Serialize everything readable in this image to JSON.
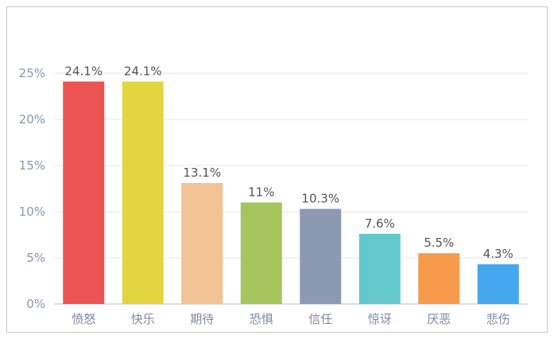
{
  "chart_data": {
    "type": "bar",
    "categories": [
      "愤怒",
      "快乐",
      "期待",
      "恐惧",
      "信任",
      "惊讶",
      "厌恶",
      "悲伤"
    ],
    "values": [
      24.1,
      24.1,
      13.1,
      11,
      10.3,
      7.6,
      5.5,
      4.3
    ],
    "data_labels": [
      "24.1%",
      "24.1%",
      "13.1%",
      "11%",
      "10.3%",
      "7.6%",
      "5.5%",
      "4.3%"
    ],
    "colors": [
      "#ec5454",
      "#e3d540",
      "#f0c294",
      "#a5c65c",
      "#8c99b3",
      "#63c8cb",
      "#f89a4c",
      "#45a8ee"
    ],
    "y_ticks": [
      0,
      5,
      10,
      15,
      20,
      25
    ],
    "y_tick_labels": [
      "0%",
      "5%",
      "10%",
      "15%",
      "20%",
      "25%"
    ],
    "ylim": [
      0,
      25
    ],
    "grid": true,
    "title": "",
    "xlabel": "",
    "ylabel": ""
  }
}
